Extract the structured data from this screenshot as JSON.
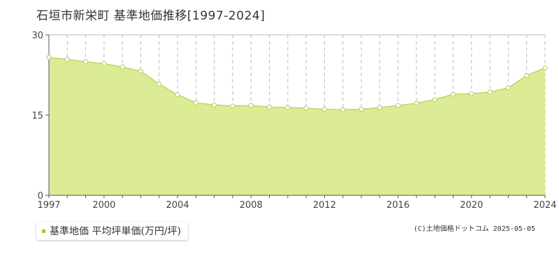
{
  "title": "石垣市新栄町 基準地価推移[1997-2024]",
  "legend": {
    "label": "基準地価 平均坪単価(万円/坪)",
    "color": "#a3c93a"
  },
  "credit": "(C)土地価格ドットコム 2025-05-05",
  "colors": {
    "area_fill": "#dcec95",
    "line": "#b9d86a",
    "marker_fill": "#ffffff",
    "marker_stroke": "#b9d86a",
    "grid": "#bbbbbb",
    "axis": "#555555"
  },
  "chart_data": {
    "type": "area",
    "title": "石垣市新栄町 基準地価推移[1997-2024]",
    "xlabel": "",
    "ylabel": "",
    "x": [
      1997,
      1998,
      1999,
      2000,
      2001,
      2002,
      2003,
      2004,
      2005,
      2006,
      2007,
      2008,
      2009,
      2010,
      2011,
      2012,
      2013,
      2014,
      2015,
      2016,
      2017,
      2018,
      2019,
      2020,
      2021,
      2022,
      2023,
      2024
    ],
    "series": [
      {
        "name": "基準地価 平均坪単価(万円/坪)",
        "values": [
          25.8,
          25.4,
          25.0,
          24.6,
          24.0,
          23.2,
          20.8,
          18.8,
          17.3,
          16.9,
          16.7,
          16.8,
          16.5,
          16.4,
          16.3,
          16.1,
          16.0,
          16.1,
          16.4,
          16.8,
          17.2,
          17.9,
          18.9,
          19.0,
          19.3,
          20.1,
          22.4,
          23.8
        ]
      }
    ],
    "xlim": [
      1997,
      2024
    ],
    "ylim": [
      0,
      30
    ],
    "x_ticks": [
      "1997",
      "2000",
      "2004",
      "2008",
      "2012",
      "2016",
      "2020",
      "2024"
    ],
    "y_ticks": [
      "0",
      "15",
      "30"
    ],
    "grid": true,
    "legend_position": "bottom-left"
  }
}
